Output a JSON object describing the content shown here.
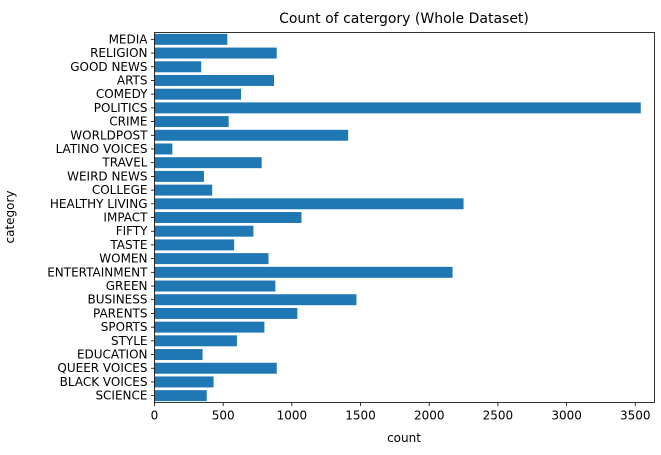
{
  "chart_data": {
    "type": "bar",
    "orientation": "horizontal",
    "title": "Count of catergory (Whole Dataset)",
    "xlabel": "count",
    "ylabel": "category",
    "xlim": [
      0,
      3640
    ],
    "xticks": [
      0,
      500,
      1000,
      1500,
      2000,
      2500,
      3000,
      3500
    ],
    "grid": false,
    "bar_color": "#1f77b4",
    "categories": [
      "MEDIA",
      "RELIGION",
      "GOOD NEWS",
      "ARTS",
      "COMEDY",
      "POLITICS",
      "CRIME",
      "WORLDPOST",
      "LATINO VOICES",
      "TRAVEL",
      "WEIRD NEWS",
      "COLLEGE",
      "HEALTHY LIVING",
      "IMPACT",
      "FIFTY",
      "TASTE",
      "WOMEN",
      "ENTERTAINMENT",
      "GREEN",
      "BUSINESS",
      "PARENTS",
      "SPORTS",
      "STYLE",
      "EDUCATION",
      "QUEER VOICES",
      "BLACK VOICES",
      "SCIENCE"
    ],
    "values": [
      530,
      890,
      340,
      870,
      630,
      3540,
      540,
      1410,
      130,
      780,
      360,
      420,
      2250,
      1070,
      720,
      580,
      830,
      2170,
      880,
      1470,
      1040,
      800,
      600,
      350,
      890,
      430,
      380
    ]
  }
}
